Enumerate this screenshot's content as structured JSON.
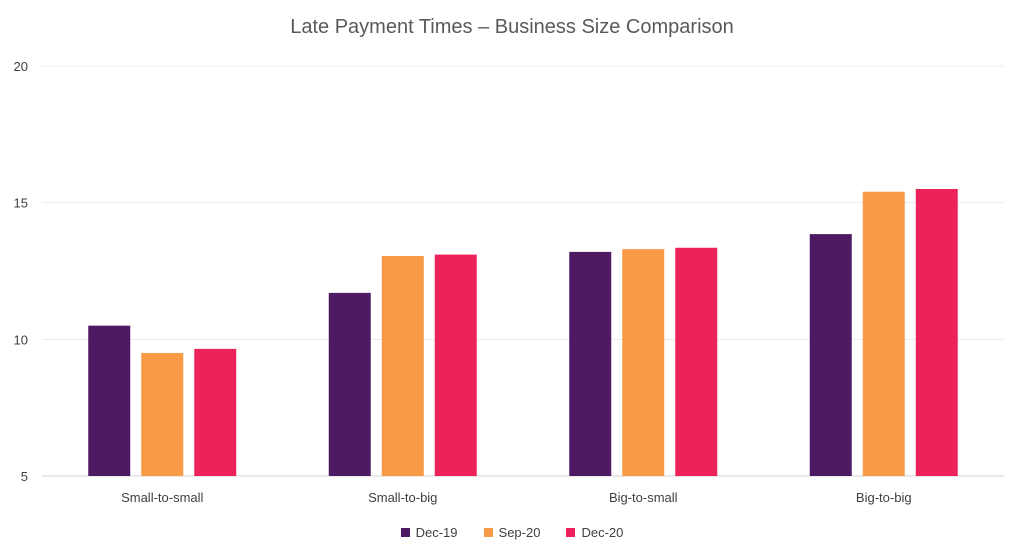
{
  "chart_data": {
    "type": "bar",
    "title": "Late Payment Times – Business Size Comparison",
    "xlabel": "",
    "ylabel": "",
    "ylim": [
      5,
      20
    ],
    "yticks": [
      5,
      10,
      15,
      20
    ],
    "grid": true,
    "legend_position": "bottom",
    "categories": [
      "Small-to-small",
      "Small-to-big",
      "Big-to-small",
      "Big-to-big"
    ],
    "series": [
      {
        "name": "Dec-19",
        "color": "#4E1A63",
        "values": [
          10.5,
          11.7,
          13.2,
          13.85
        ]
      },
      {
        "name": "Sep-20",
        "color": "#F99A46",
        "values": [
          9.5,
          13.05,
          13.3,
          15.4
        ]
      },
      {
        "name": "Dec-20",
        "color": "#EE225A",
        "values": [
          9.65,
          13.1,
          13.35,
          15.5
        ]
      }
    ]
  }
}
